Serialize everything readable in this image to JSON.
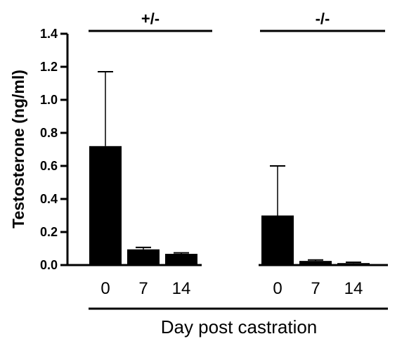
{
  "chart_data": {
    "type": "bar",
    "ylabel": "Testosterone (ng/ml)",
    "xlabel": "Day post castration",
    "ylim": [
      0,
      1.4
    ],
    "yticks": [
      "0.0",
      "0.2",
      "0.4",
      "0.6",
      "0.8",
      "1.0",
      "1.2",
      "1.4"
    ],
    "bar_color": "#000000",
    "groups": [
      {
        "label": "+/-",
        "categories": [
          "0",
          "7",
          "14"
        ],
        "values": [
          0.72,
          0.095,
          0.068
        ],
        "errors": [
          0.45,
          0.012,
          0.006
        ]
      },
      {
        "label": "-/-",
        "categories": [
          "0",
          "7",
          "14"
        ],
        "values": [
          0.3,
          0.025,
          0.012
        ],
        "errors": [
          0.3,
          0.006,
          0.005
        ]
      }
    ]
  }
}
